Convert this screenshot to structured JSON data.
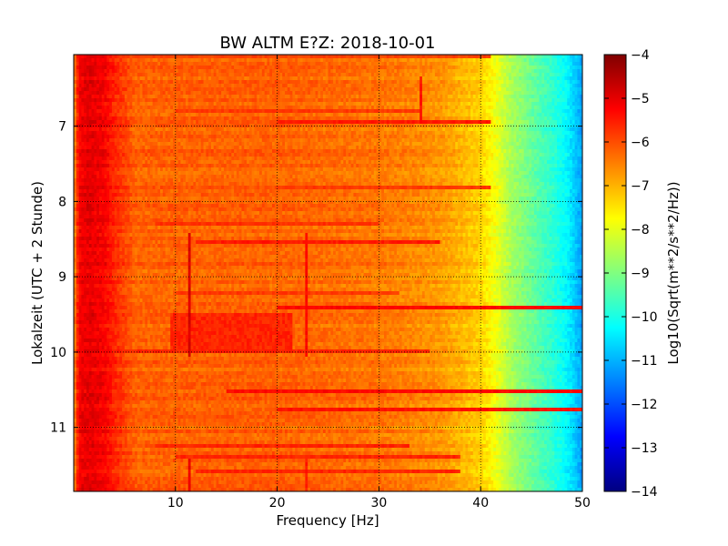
{
  "chart_data": {
    "type": "heatmap",
    "title": "BW ALTM E?Z: 2018-10-01",
    "xlabel": "Frequency [Hz]",
    "ylabel": "Lokalzeit (UTC + 2 Stunde)",
    "xlim": [
      0,
      50
    ],
    "ylim": [
      11.85,
      6.05
    ],
    "y_inverted": true,
    "grid": true,
    "x_ticks": [
      10,
      20,
      30,
      40,
      50
    ],
    "y_ticks": [
      7,
      8,
      9,
      10,
      11
    ],
    "colorbar": {
      "label": "Log10(Sqrt(m**2/s**2/Hz))",
      "range": [
        -14,
        -4
      ],
      "ticks": [
        -4,
        -5,
        -6,
        -7,
        -8,
        -9,
        -10,
        -11,
        -12,
        -13,
        -14
      ],
      "colormap": "jet"
    },
    "base_profile": {
      "frequency": [
        0,
        0.5,
        1.5,
        3,
        4,
        6,
        10,
        20,
        30,
        36,
        38,
        40,
        41.5,
        43,
        45,
        47,
        48.5,
        49.5,
        50
      ],
      "value": [
        -6.8,
        -5.2,
        -5.0,
        -5.2,
        -5.6,
        -6.2,
        -6.2,
        -6.2,
        -6.4,
        -6.7,
        -7.0,
        -7.3,
        -7.9,
        -8.6,
        -9.2,
        -9.8,
        -10.3,
        -10.9,
        -11.2
      ]
    },
    "narrowband_lines": [
      {
        "frequency": 11.3,
        "time_start": 8.4,
        "time_end": 10.05,
        "value": -4.9
      },
      {
        "frequency": 11.3,
        "time_start": 11.4,
        "time_end": 11.85,
        "value": -5.1
      },
      {
        "frequency": 22.8,
        "time_start": 8.4,
        "time_end": 10.05,
        "value": -5.3
      },
      {
        "frequency": 22.8,
        "time_start": 11.4,
        "time_end": 11.85,
        "value": -5.5
      },
      {
        "frequency": 34.0,
        "time_start": 6.35,
        "time_end": 6.95,
        "value": -5.4
      }
    ],
    "broadband_bands": [
      {
        "time": 6.05,
        "f_start": 1,
        "f_end": 41,
        "value": -5.9
      },
      {
        "time": 6.8,
        "f_start": 10,
        "f_end": 34,
        "value": -5.8
      },
      {
        "time": 6.95,
        "f_start": 20,
        "f_end": 41,
        "value": -5.5
      },
      {
        "time": 7.8,
        "f_start": 20,
        "f_end": 41,
        "value": -5.8
      },
      {
        "time": 8.28,
        "f_start": 8,
        "f_end": 30,
        "value": -5.7
      },
      {
        "time": 8.55,
        "f_start": 12,
        "f_end": 36,
        "value": -5.5
      },
      {
        "time": 9.2,
        "f_start": 10,
        "f_end": 32,
        "value": -5.8
      },
      {
        "time": 9.4,
        "f_start": 20,
        "f_end": 50,
        "value": -5.3
      },
      {
        "time": 9.97,
        "f_start": 5,
        "f_end": 35,
        "value": -5.6
      },
      {
        "time": 10.5,
        "f_start": 15,
        "f_end": 50,
        "value": -5.3
      },
      {
        "time": 10.78,
        "f_start": 20,
        "f_end": 50,
        "value": -5.4
      },
      {
        "time": 11.25,
        "f_start": 8,
        "f_end": 33,
        "value": -5.6
      },
      {
        "time": 11.4,
        "f_start": 10,
        "f_end": 38,
        "value": -5.6
      },
      {
        "time": 11.6,
        "f_start": 12,
        "f_end": 38,
        "value": -5.6
      }
    ],
    "enhanced_region": {
      "f_start": 9.5,
      "f_end": 21.5,
      "time_start": 9.5,
      "time_end": 10.0,
      "value": -5.6
    }
  }
}
